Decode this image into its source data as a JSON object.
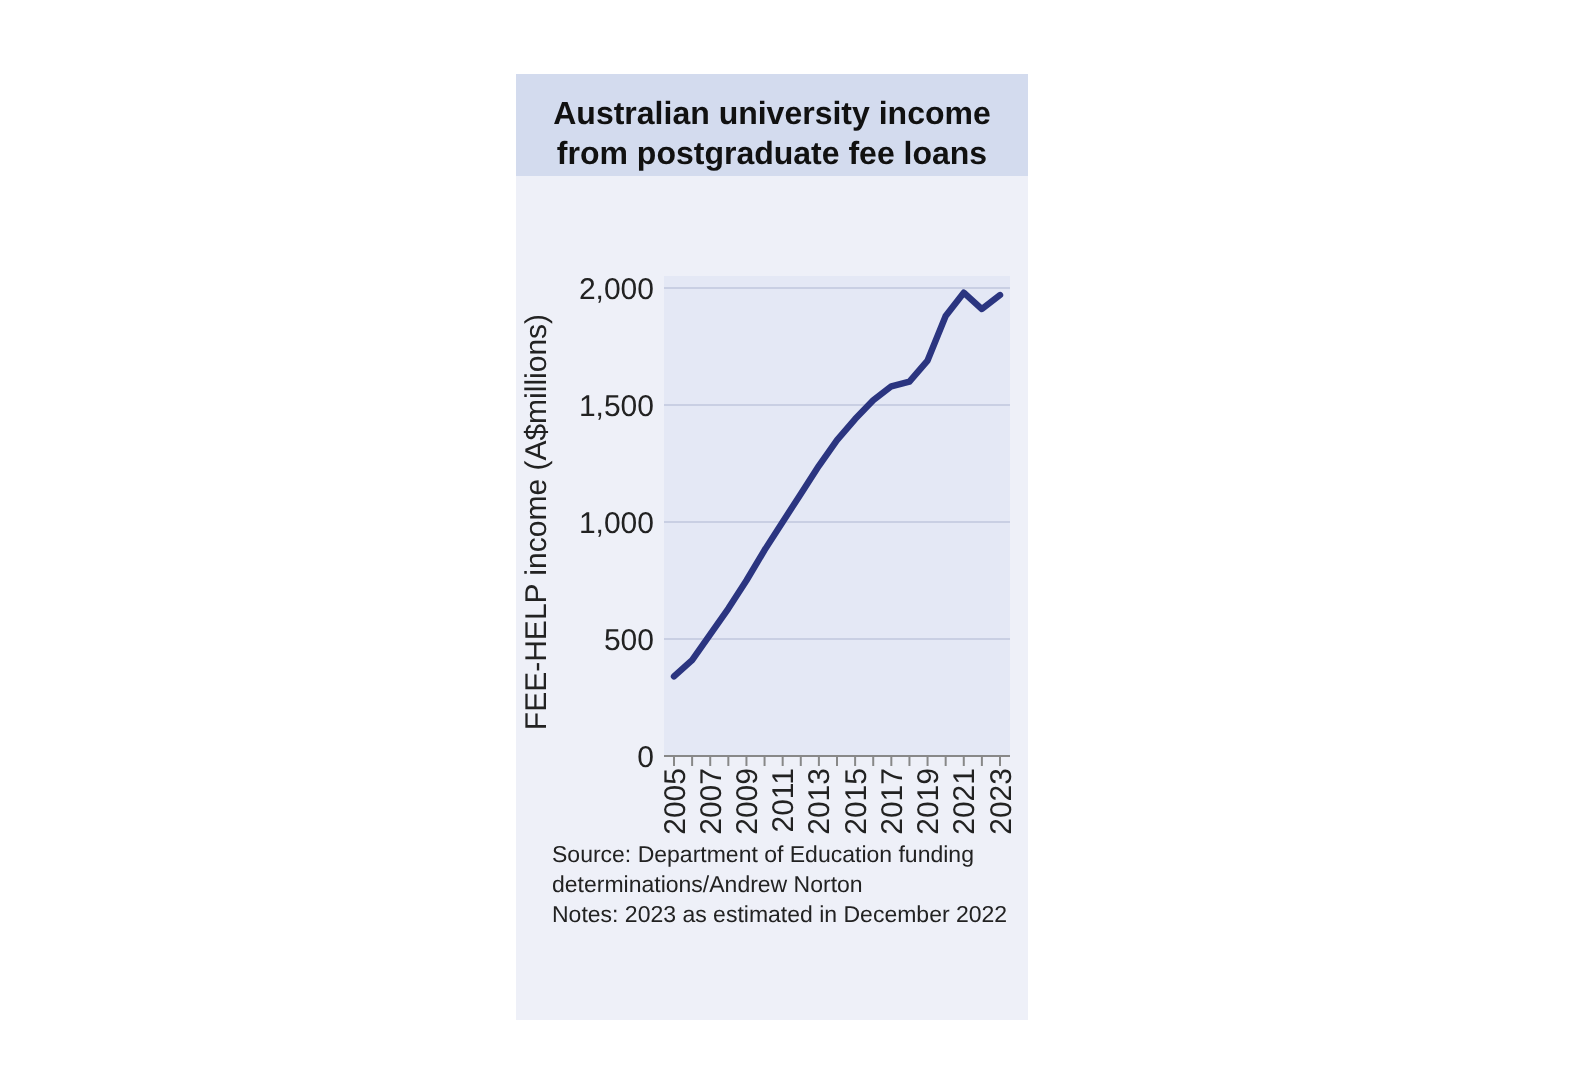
{
  "chart_data": {
    "type": "line",
    "title": "Australian university income from postgraduate fee loans",
    "ylabel": "FEE-HELP income (A$millions)",
    "categories": [
      "2005",
      null,
      "2007",
      null,
      "2009",
      null,
      "2011",
      null,
      "2013",
      null,
      "2015",
      null,
      "2017",
      null,
      "2019",
      null,
      "2021",
      null,
      "2023"
    ],
    "series": [
      {
        "color": "#2b3580",
        "values": [
          340,
          410,
          520,
          630,
          750,
          880,
          1000,
          1120,
          1240,
          1350,
          1440,
          1520,
          1580,
          1600,
          1690,
          1880,
          1980,
          1910,
          1970
        ]
      }
    ],
    "ylim": [
      0,
      2000
    ],
    "yticks": [
      0,
      {
        "value": 500,
        "label": "500"
      },
      {
        "value": 1000,
        "label": "1,000"
      },
      {
        "value": 1500,
        "label": "1,500"
      },
      {
        "value": 2000,
        "label": "2,000"
      }
    ],
    "grid": "y",
    "marker": "none",
    "line_style": "solid",
    "annotations": [
      "Source: Department of Education funding determinations/Andrew Norton",
      "Notes: 2023 as estimated in December 2022"
    ]
  }
}
